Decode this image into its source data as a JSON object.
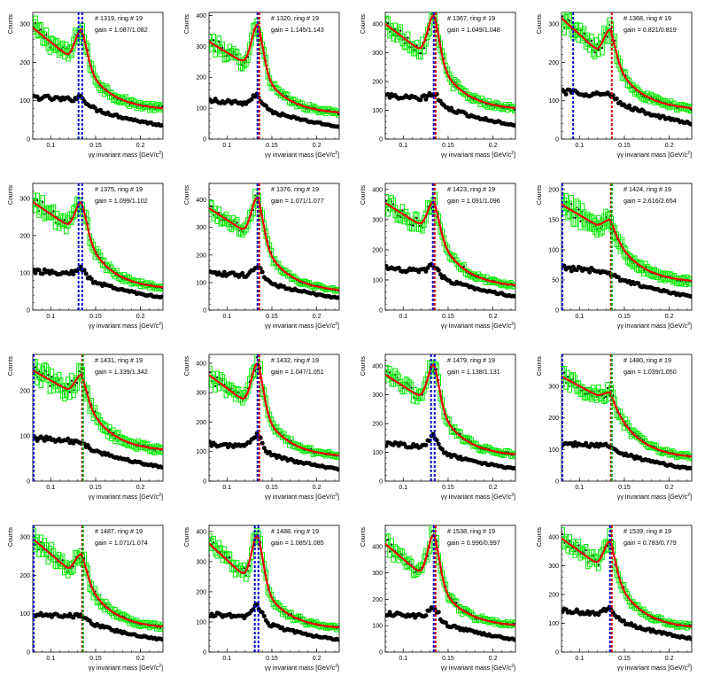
{
  "labels": {
    "ylabel": "Counts",
    "xlabel_prefix": "γγ invariant mass [GeV/c",
    "xlabel_sup": "2",
    "xlabel_suffix": "]",
    "ring_label_prefix": "# ",
    "ring_label_mid": ", ring # ",
    "gain_label_prefix": "gain = "
  },
  "colors": {
    "signal_marker": "#00ee00",
    "fit_line": "#ee0000",
    "background_marker": "#000000",
    "line_blue": "#0000cc",
    "line_red": "#cc0000",
    "line_green": "#00aa00"
  },
  "chart_data": [
    {
      "type": "scatter",
      "id": "1319",
      "ring": "19",
      "gain": "1.087/1.082",
      "xlim": [
        0.08,
        0.225
      ],
      "ylim": [
        0,
        330
      ],
      "yticks": [
        0,
        100,
        200,
        300
      ],
      "xticks": [
        0.1,
        0.15,
        0.2
      ],
      "lines": [
        {
          "x": 0.131,
          "color": "blue"
        },
        {
          "x": 0.135,
          "color": "blue"
        }
      ],
      "sig": {
        "start": 290,
        "base": 215,
        "peak": 285,
        "tail": 75
      },
      "bkg": {
        "start": 110,
        "peak": 115,
        "end": 30
      }
    },
    {
      "type": "scatter",
      "id": "1320",
      "ring": "19",
      "gain": "1.145/1.143",
      "xlim": [
        0.08,
        0.225
      ],
      "ylim": [
        0,
        410
      ],
      "yticks": [
        0,
        100,
        200,
        300,
        400
      ],
      "xticks": [
        0.1,
        0.15,
        0.2
      ],
      "lines": [
        {
          "x": 0.134,
          "color": "blue"
        },
        {
          "x": 0.136,
          "color": "red"
        }
      ],
      "sig": {
        "start": 315,
        "base": 245,
        "peak": 370,
        "tail": 80
      },
      "bkg": {
        "start": 125,
        "peak": 145,
        "end": 30
      }
    },
    {
      "type": "scatter",
      "id": "1367",
      "ring": "19",
      "gain": "1.049/1.048",
      "xlim": [
        0.08,
        0.225
      ],
      "ylim": [
        0,
        440
      ],
      "yticks": [
        0,
        100,
        200,
        300,
        400
      ],
      "xticks": [
        0.1,
        0.15,
        0.2
      ],
      "lines": [
        {
          "x": 0.134,
          "color": "blue"
        },
        {
          "x": 0.136,
          "color": "red"
        }
      ],
      "sig": {
        "start": 400,
        "base": 305,
        "peak": 430,
        "tail": 100
      },
      "bkg": {
        "start": 150,
        "peak": 165,
        "end": 30
      }
    },
    {
      "type": "scatter",
      "id": "1368",
      "ring": "19",
      "gain": "0.821/0.819",
      "xlim": [
        0.08,
        0.225
      ],
      "ylim": [
        0,
        330
      ],
      "yticks": [
        0,
        100,
        200,
        300
      ],
      "xticks": [
        0.1,
        0.15,
        0.2
      ],
      "lines": [
        {
          "x": 0.093,
          "color": "blue"
        },
        {
          "x": 0.136,
          "color": "red"
        }
      ],
      "sig": {
        "start": 315,
        "base": 230,
        "peak": 285,
        "tail": 75
      },
      "bkg": {
        "start": 125,
        "peak": 120,
        "end": 30
      }
    },
    {
      "type": "scatter",
      "id": "1375",
      "ring": "19",
      "gain": "1.099/1.102",
      "xlim": [
        0.08,
        0.225
      ],
      "ylim": [
        0,
        340
      ],
      "yticks": [
        0,
        100,
        200,
        300
      ],
      "xticks": [
        0.1,
        0.15,
        0.2
      ],
      "lines": [
        {
          "x": 0.131,
          "color": "blue"
        },
        {
          "x": 0.135,
          "color": "blue"
        }
      ],
      "sig": {
        "start": 290,
        "base": 225,
        "peak": 290,
        "tail": 55
      },
      "bkg": {
        "start": 105,
        "peak": 115,
        "end": 20
      }
    },
    {
      "type": "scatter",
      "id": "1376",
      "ring": "19",
      "gain": "1.071/1.077",
      "xlim": [
        0.08,
        0.225
      ],
      "ylim": [
        0,
        460
      ],
      "yticks": [
        0,
        100,
        200,
        300,
        400
      ],
      "xticks": [
        0.1,
        0.15,
        0.2
      ],
      "lines": [
        {
          "x": 0.134,
          "color": "blue"
        },
        {
          "x": 0.136,
          "color": "red"
        }
      ],
      "sig": {
        "start": 370,
        "base": 285,
        "peak": 410,
        "tail": 65
      },
      "bkg": {
        "start": 135,
        "peak": 165,
        "end": 30
      }
    },
    {
      "type": "scatter",
      "id": "1423",
      "ring": "19",
      "gain": "1.091/1.096",
      "xlim": [
        0.08,
        0.225
      ],
      "ylim": [
        0,
        420
      ],
      "yticks": [
        0,
        100,
        200,
        300,
        400
      ],
      "xticks": [
        0.1,
        0.15,
        0.2
      ],
      "lines": [
        {
          "x": 0.133,
          "color": "blue"
        },
        {
          "x": 0.135,
          "color": "red"
        }
      ],
      "sig": {
        "start": 355,
        "base": 280,
        "peak": 360,
        "tail": 75
      },
      "bkg": {
        "start": 140,
        "peak": 150,
        "end": 35
      }
    },
    {
      "type": "scatter",
      "id": "1424",
      "ring": "19",
      "gain": "2.616/2.654",
      "xlim": [
        0.08,
        0.225
      ],
      "ylim": [
        0,
        210
      ],
      "yticks": [
        0,
        50,
        100,
        150,
        200
      ],
      "xticks": [
        0.1,
        0.15,
        0.2
      ],
      "lines": [
        {
          "x": 0.081,
          "color": "blue"
        },
        {
          "x": 0.135,
          "color": "red"
        },
        {
          "x": 0.136,
          "color": "green"
        }
      ],
      "sig": {
        "start": 175,
        "base": 140,
        "peak": 150,
        "tail": 45
      },
      "bkg": {
        "start": 70,
        "peak": 60,
        "end": 15
      }
    },
    {
      "type": "scatter",
      "id": "1431",
      "ring": "19",
      "gain": "1.339/1.342",
      "xlim": [
        0.08,
        0.225
      ],
      "ylim": [
        0,
        280
      ],
      "yticks": [
        0,
        100,
        200
      ],
      "xticks": [
        0.1,
        0.15,
        0.2
      ],
      "lines": [
        {
          "x": 0.081,
          "color": "blue"
        },
        {
          "x": 0.135,
          "color": "red"
        },
        {
          "x": 0.136,
          "color": "green"
        }
      ],
      "sig": {
        "start": 245,
        "base": 200,
        "peak": 235,
        "tail": 65
      },
      "bkg": {
        "start": 95,
        "peak": 90,
        "end": 20
      }
    },
    {
      "type": "scatter",
      "id": "1432",
      "ring": "19",
      "gain": "1.047/1.051",
      "xlim": [
        0.08,
        0.225
      ],
      "ylim": [
        0,
        430
      ],
      "yticks": [
        0,
        100,
        200,
        300,
        400
      ],
      "xticks": [
        0.1,
        0.15,
        0.2
      ],
      "lines": [
        {
          "x": 0.134,
          "color": "blue"
        },
        {
          "x": 0.136,
          "color": "red"
        }
      ],
      "sig": {
        "start": 360,
        "base": 270,
        "peak": 400,
        "tail": 80
      },
      "bkg": {
        "start": 125,
        "peak": 165,
        "end": 30
      }
    },
    {
      "type": "scatter",
      "id": "1479",
      "ring": "19",
      "gain": "1.138/1.131",
      "xlim": [
        0.08,
        0.225
      ],
      "ylim": [
        0,
        440
      ],
      "yticks": [
        0,
        100,
        200,
        300,
        400
      ],
      "xticks": [
        0.1,
        0.15,
        0.2
      ],
      "lines": [
        {
          "x": 0.131,
          "color": "blue"
        },
        {
          "x": 0.135,
          "color": "blue"
        }
      ],
      "sig": {
        "start": 370,
        "base": 290,
        "peak": 405,
        "tail": 85
      },
      "bkg": {
        "start": 130,
        "peak": 160,
        "end": 30
      }
    },
    {
      "type": "scatter",
      "id": "1480",
      "ring": "19",
      "gain": "1.039/1.050",
      "xlim": [
        0.08,
        0.225
      ],
      "ylim": [
        0,
        400
      ],
      "yticks": [
        0,
        100,
        200,
        300
      ],
      "xticks": [
        0.1,
        0.15,
        0.2
      ],
      "lines": [
        {
          "x": 0.081,
          "color": "blue"
        },
        {
          "x": 0.135,
          "color": "red"
        },
        {
          "x": 0.136,
          "color": "green"
        }
      ],
      "sig": {
        "start": 330,
        "base": 270,
        "peak": 280,
        "tail": 70
      },
      "bkg": {
        "start": 120,
        "peak": 115,
        "end": 25
      }
    },
    {
      "type": "scatter",
      "id": "1487",
      "ring": "19",
      "gain": "1.071/1.074",
      "xlim": [
        0.08,
        0.225
      ],
      "ylim": [
        0,
        330
      ],
      "yticks": [
        0,
        100,
        200,
        300
      ],
      "xticks": [
        0.1,
        0.15,
        0.2
      ],
      "lines": [
        {
          "x": 0.081,
          "color": "blue"
        },
        {
          "x": 0.135,
          "color": "red"
        },
        {
          "x": 0.136,
          "color": "green"
        }
      ],
      "sig": {
        "start": 295,
        "base": 215,
        "peak": 255,
        "tail": 60
      },
      "bkg": {
        "start": 100,
        "peak": 100,
        "end": 20
      }
    },
    {
      "type": "scatter",
      "id": "1488",
      "ring": "19",
      "gain": "1.085/1.085",
      "xlim": [
        0.08,
        0.225
      ],
      "ylim": [
        0,
        420
      ],
      "yticks": [
        0,
        100,
        200,
        300,
        400
      ],
      "xticks": [
        0.1,
        0.15,
        0.2
      ],
      "lines": [
        {
          "x": 0.131,
          "color": "blue"
        },
        {
          "x": 0.135,
          "color": "blue"
        }
      ],
      "sig": {
        "start": 360,
        "base": 250,
        "peak": 385,
        "tail": 75
      },
      "bkg": {
        "start": 125,
        "peak": 155,
        "end": 30
      }
    },
    {
      "type": "scatter",
      "id": "1538",
      "ring": "19",
      "gain": "0.996/0.997",
      "xlim": [
        0.08,
        0.225
      ],
      "ylim": [
        0,
        480
      ],
      "yticks": [
        0,
        100,
        200,
        300,
        400
      ],
      "xticks": [
        0.1,
        0.15,
        0.2
      ],
      "lines": [
        {
          "x": 0.134,
          "color": "blue"
        },
        {
          "x": 0.136,
          "color": "red"
        }
      ],
      "sig": {
        "start": 410,
        "base": 295,
        "peak": 445,
        "tail": 95
      },
      "bkg": {
        "start": 145,
        "peak": 175,
        "end": 30
      }
    },
    {
      "type": "scatter",
      "id": "1539",
      "ring": "19",
      "gain": "0.783/0.779",
      "xlim": [
        0.08,
        0.225
      ],
      "ylim": [
        0,
        440
      ],
      "yticks": [
        0,
        100,
        200,
        300,
        400
      ],
      "xticks": [
        0.1,
        0.15,
        0.2
      ],
      "lines": [
        {
          "x": 0.134,
          "color": "blue"
        },
        {
          "x": 0.136,
          "color": "red"
        }
      ],
      "sig": {
        "start": 395,
        "base": 305,
        "peak": 385,
        "tail": 80
      },
      "bkg": {
        "start": 145,
        "peak": 160,
        "end": 30
      }
    }
  ]
}
